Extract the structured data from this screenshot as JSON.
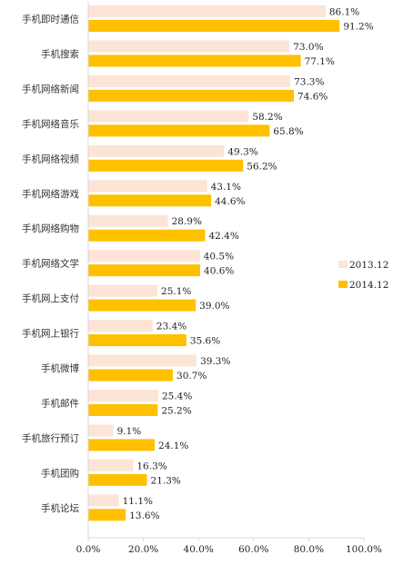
{
  "chart_data": {
    "type": "bar",
    "orientation": "horizontal",
    "categories": [
      "手机即时通信",
      "手机搜索",
      "手机网络新闻",
      "手机网络音乐",
      "手机网络视频",
      "手机网络游戏",
      "手机网络购物",
      "手机网络文学",
      "手机网上支付",
      "手机网上银行",
      "手机微博",
      "手机邮件",
      "手机旅行预订",
      "手机团购",
      "手机论坛"
    ],
    "series": [
      {
        "name": "2013.12",
        "color": "#FCE4D6",
        "values": [
          86.1,
          73.0,
          73.3,
          58.2,
          49.3,
          43.1,
          28.9,
          40.5,
          25.1,
          23.4,
          39.3,
          25.4,
          9.1,
          16.3,
          11.1
        ],
        "labels": [
          "86.1%",
          "73.0%",
          "73.3%",
          "58.2%",
          "49.3%",
          "43.1%",
          "28.9%",
          "40.5%",
          "25.1%",
          "23.4%",
          "39.3%",
          "25.4%",
          "9.1%",
          "16.3%",
          "11.1%"
        ]
      },
      {
        "name": "2014.12",
        "color": "#FFC000",
        "values": [
          91.2,
          77.1,
          74.6,
          65.8,
          56.2,
          44.6,
          42.4,
          40.6,
          39.0,
          35.6,
          30.7,
          25.2,
          24.1,
          21.3,
          13.6
        ],
        "labels": [
          "91.2%",
          "77.1%",
          "74.6%",
          "65.8%",
          "56.2%",
          "44.6%",
          "42.4%",
          "40.6%",
          "39.0%",
          "35.6%",
          "30.7%",
          "25.2%",
          "24.1%",
          "21.3%",
          "13.6%"
        ]
      }
    ],
    "xlim": [
      0,
      100
    ],
    "xticks": [
      "0.0%",
      "20.0%",
      "40.0%",
      "60.0%",
      "80.0%",
      "100.0%"
    ],
    "legend_position": "right",
    "grid": false,
    "title": "",
    "xlabel": "",
    "ylabel": ""
  }
}
